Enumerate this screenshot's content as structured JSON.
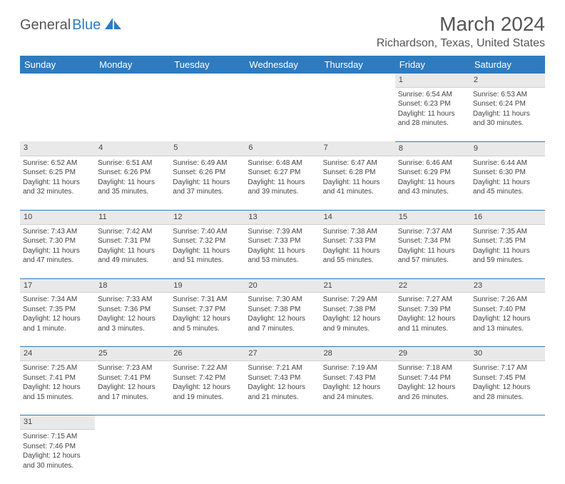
{
  "logo": {
    "part1": "General",
    "part2": "Blue"
  },
  "title": "March 2024",
  "location": "Richardson, Texas, United States",
  "colors": {
    "header_bg": "#2f7bbf",
    "daynum_bg": "#e9e9e9",
    "text": "#444444",
    "logo_blue": "#2f7bbf"
  },
  "weekdays": [
    "Sunday",
    "Monday",
    "Tuesday",
    "Wednesday",
    "Thursday",
    "Friday",
    "Saturday"
  ],
  "weeks": [
    {
      "days": [
        null,
        null,
        null,
        null,
        null,
        {
          "n": "1",
          "sr": "Sunrise: 6:54 AM",
          "ss": "Sunset: 6:23 PM",
          "d1": "Daylight: 11 hours",
          "d2": "and 28 minutes."
        },
        {
          "n": "2",
          "sr": "Sunrise: 6:53 AM",
          "ss": "Sunset: 6:24 PM",
          "d1": "Daylight: 11 hours",
          "d2": "and 30 minutes."
        }
      ]
    },
    {
      "days": [
        {
          "n": "3",
          "sr": "Sunrise: 6:52 AM",
          "ss": "Sunset: 6:25 PM",
          "d1": "Daylight: 11 hours",
          "d2": "and 32 minutes."
        },
        {
          "n": "4",
          "sr": "Sunrise: 6:51 AM",
          "ss": "Sunset: 6:26 PM",
          "d1": "Daylight: 11 hours",
          "d2": "and 35 minutes."
        },
        {
          "n": "5",
          "sr": "Sunrise: 6:49 AM",
          "ss": "Sunset: 6:26 PM",
          "d1": "Daylight: 11 hours",
          "d2": "and 37 minutes."
        },
        {
          "n": "6",
          "sr": "Sunrise: 6:48 AM",
          "ss": "Sunset: 6:27 PM",
          "d1": "Daylight: 11 hours",
          "d2": "and 39 minutes."
        },
        {
          "n": "7",
          "sr": "Sunrise: 6:47 AM",
          "ss": "Sunset: 6:28 PM",
          "d1": "Daylight: 11 hours",
          "d2": "and 41 minutes."
        },
        {
          "n": "8",
          "sr": "Sunrise: 6:46 AM",
          "ss": "Sunset: 6:29 PM",
          "d1": "Daylight: 11 hours",
          "d2": "and 43 minutes."
        },
        {
          "n": "9",
          "sr": "Sunrise: 6:44 AM",
          "ss": "Sunset: 6:30 PM",
          "d1": "Daylight: 11 hours",
          "d2": "and 45 minutes."
        }
      ]
    },
    {
      "days": [
        {
          "n": "10",
          "sr": "Sunrise: 7:43 AM",
          "ss": "Sunset: 7:30 PM",
          "d1": "Daylight: 11 hours",
          "d2": "and 47 minutes."
        },
        {
          "n": "11",
          "sr": "Sunrise: 7:42 AM",
          "ss": "Sunset: 7:31 PM",
          "d1": "Daylight: 11 hours",
          "d2": "and 49 minutes."
        },
        {
          "n": "12",
          "sr": "Sunrise: 7:40 AM",
          "ss": "Sunset: 7:32 PM",
          "d1": "Daylight: 11 hours",
          "d2": "and 51 minutes."
        },
        {
          "n": "13",
          "sr": "Sunrise: 7:39 AM",
          "ss": "Sunset: 7:33 PM",
          "d1": "Daylight: 11 hours",
          "d2": "and 53 minutes."
        },
        {
          "n": "14",
          "sr": "Sunrise: 7:38 AM",
          "ss": "Sunset: 7:33 PM",
          "d1": "Daylight: 11 hours",
          "d2": "and 55 minutes."
        },
        {
          "n": "15",
          "sr": "Sunrise: 7:37 AM",
          "ss": "Sunset: 7:34 PM",
          "d1": "Daylight: 11 hours",
          "d2": "and 57 minutes."
        },
        {
          "n": "16",
          "sr": "Sunrise: 7:35 AM",
          "ss": "Sunset: 7:35 PM",
          "d1": "Daylight: 11 hours",
          "d2": "and 59 minutes."
        }
      ]
    },
    {
      "days": [
        {
          "n": "17",
          "sr": "Sunrise: 7:34 AM",
          "ss": "Sunset: 7:35 PM",
          "d1": "Daylight: 12 hours",
          "d2": "and 1 minute."
        },
        {
          "n": "18",
          "sr": "Sunrise: 7:33 AM",
          "ss": "Sunset: 7:36 PM",
          "d1": "Daylight: 12 hours",
          "d2": "and 3 minutes."
        },
        {
          "n": "19",
          "sr": "Sunrise: 7:31 AM",
          "ss": "Sunset: 7:37 PM",
          "d1": "Daylight: 12 hours",
          "d2": "and 5 minutes."
        },
        {
          "n": "20",
          "sr": "Sunrise: 7:30 AM",
          "ss": "Sunset: 7:38 PM",
          "d1": "Daylight: 12 hours",
          "d2": "and 7 minutes."
        },
        {
          "n": "21",
          "sr": "Sunrise: 7:29 AM",
          "ss": "Sunset: 7:38 PM",
          "d1": "Daylight: 12 hours",
          "d2": "and 9 minutes."
        },
        {
          "n": "22",
          "sr": "Sunrise: 7:27 AM",
          "ss": "Sunset: 7:39 PM",
          "d1": "Daylight: 12 hours",
          "d2": "and 11 minutes."
        },
        {
          "n": "23",
          "sr": "Sunrise: 7:26 AM",
          "ss": "Sunset: 7:40 PM",
          "d1": "Daylight: 12 hours",
          "d2": "and 13 minutes."
        }
      ]
    },
    {
      "days": [
        {
          "n": "24",
          "sr": "Sunrise: 7:25 AM",
          "ss": "Sunset: 7:41 PM",
          "d1": "Daylight: 12 hours",
          "d2": "and 15 minutes."
        },
        {
          "n": "25",
          "sr": "Sunrise: 7:23 AM",
          "ss": "Sunset: 7:41 PM",
          "d1": "Daylight: 12 hours",
          "d2": "and 17 minutes."
        },
        {
          "n": "26",
          "sr": "Sunrise: 7:22 AM",
          "ss": "Sunset: 7:42 PM",
          "d1": "Daylight: 12 hours",
          "d2": "and 19 minutes."
        },
        {
          "n": "27",
          "sr": "Sunrise: 7:21 AM",
          "ss": "Sunset: 7:43 PM",
          "d1": "Daylight: 12 hours",
          "d2": "and 21 minutes."
        },
        {
          "n": "28",
          "sr": "Sunrise: 7:19 AM",
          "ss": "Sunset: 7:43 PM",
          "d1": "Daylight: 12 hours",
          "d2": "and 24 minutes."
        },
        {
          "n": "29",
          "sr": "Sunrise: 7:18 AM",
          "ss": "Sunset: 7:44 PM",
          "d1": "Daylight: 12 hours",
          "d2": "and 26 minutes."
        },
        {
          "n": "30",
          "sr": "Sunrise: 7:17 AM",
          "ss": "Sunset: 7:45 PM",
          "d1": "Daylight: 12 hours",
          "d2": "and 28 minutes."
        }
      ]
    },
    {
      "days": [
        {
          "n": "31",
          "sr": "Sunrise: 7:15 AM",
          "ss": "Sunset: 7:46 PM",
          "d1": "Daylight: 12 hours",
          "d2": "and 30 minutes."
        },
        null,
        null,
        null,
        null,
        null,
        null
      ]
    }
  ]
}
